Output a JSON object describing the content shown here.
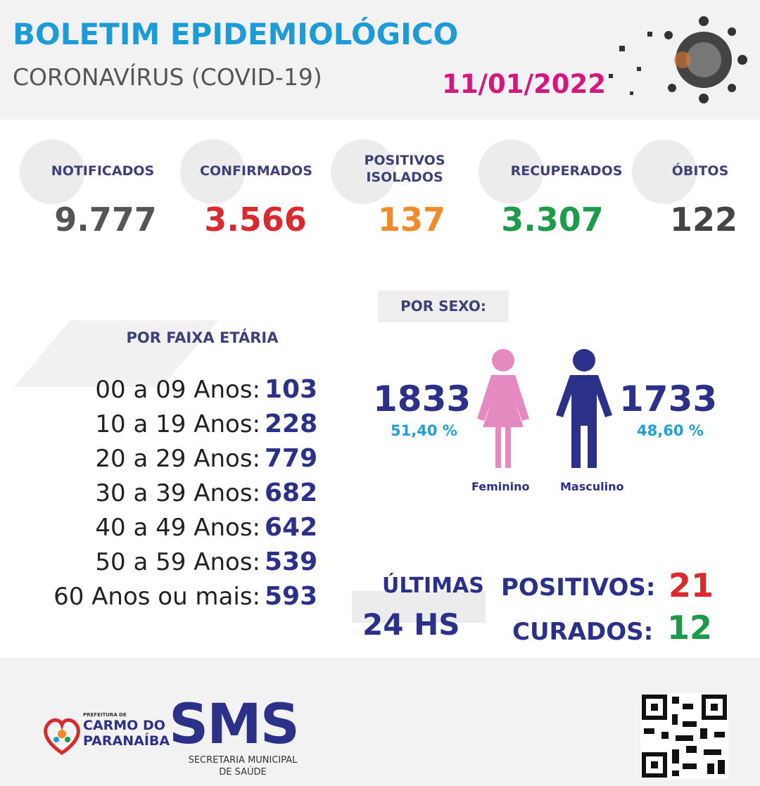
{
  "header": {
    "title": "BOLETIM EPIDEMIOLÓGICO",
    "subtitle": "CORONAVÍRUS (COVID-19)",
    "date": "11/01/2022"
  },
  "summary": [
    {
      "label": "NOTIFICADOS",
      "value": "9.777"
    },
    {
      "label": "CONFIRMADOS",
      "value": "3.566"
    },
    {
      "label": "POSITIVOS ISOLADOS",
      "value": "137"
    },
    {
      "label": "RECUPERADOS",
      "value": "3.307"
    },
    {
      "label": "ÓBITOS",
      "value": "122"
    }
  ],
  "age": {
    "title": "POR FAIXA ETÁRIA",
    "rows": [
      {
        "label": "00 a 09 Anos:",
        "value": "103"
      },
      {
        "label": "10 a 19 Anos:",
        "value": "228"
      },
      {
        "label": "20 a 29 Anos:",
        "value": "779"
      },
      {
        "label": "30 a 39 Anos:",
        "value": "682"
      },
      {
        "label": "40 a 49 Anos:",
        "value": "642"
      },
      {
        "label": "50 a 59 Anos:",
        "value": "539"
      },
      {
        "label": "60 Anos ou mais:",
        "value": "593"
      }
    ]
  },
  "sex": {
    "title": "POR SEXO:",
    "female": {
      "count": "1833",
      "percent": "51,40 %",
      "label": "Feminino"
    },
    "male": {
      "count": "1733",
      "percent": "48,60 %",
      "label": "Masculino"
    }
  },
  "last24": {
    "title_line1": "ÚLTIMAS",
    "title_line2": "24 HS",
    "positives_label": "POSITIVOS:",
    "positives": "21",
    "cured_label": "CURADOS:",
    "cured": "12"
  },
  "footer": {
    "prefeitura": "PREFEITURA DE",
    "city_line1": "CARMO DO",
    "city_line2": "PARANAÍBA",
    "sms": "SMS",
    "sms_line1": "SECRETARIA MUNICIPAL",
    "sms_line2": "DE SAÚDE"
  }
}
